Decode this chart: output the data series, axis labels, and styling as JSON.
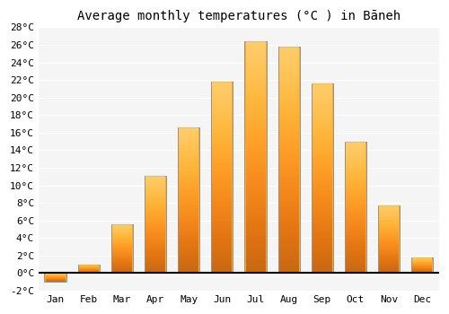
{
  "title": "Average monthly temperatures (°C ) in Bāneh",
  "months": [
    "Jan",
    "Feb",
    "Mar",
    "Apr",
    "May",
    "Jun",
    "Jul",
    "Aug",
    "Sep",
    "Oct",
    "Nov",
    "Dec"
  ],
  "values": [
    -1.0,
    1.0,
    5.6,
    11.1,
    16.6,
    21.8,
    26.4,
    25.8,
    21.6,
    15.0,
    7.7,
    1.8
  ],
  "bar_color": "#FFA726",
  "bar_edge_color": "#888888",
  "background_color": "#FFFFFF",
  "plot_bg_color": "#F5F5F5",
  "grid_color": "#FFFFFF",
  "ylim": [
    -2,
    28
  ],
  "yticks": [
    -2,
    0,
    2,
    4,
    6,
    8,
    10,
    12,
    14,
    16,
    18,
    20,
    22,
    24,
    26,
    28
  ],
  "ytick_labels": [
    "-2°C",
    "0°C",
    "2°C",
    "4°C",
    "6°C",
    "8°C",
    "10°C",
    "12°C",
    "14°C",
    "16°C",
    "18°C",
    "20°C",
    "22°C",
    "24°C",
    "26°C",
    "28°C"
  ],
  "font_family": "monospace",
  "title_fontsize": 10,
  "tick_fontsize": 8
}
